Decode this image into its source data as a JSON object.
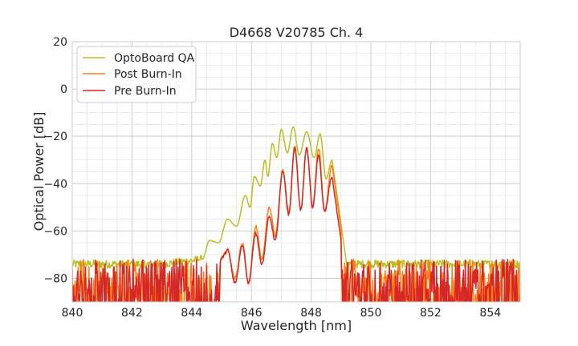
{
  "chart_data": {
    "type": "line",
    "title": "D4668 V20785 Ch. 4",
    "xlabel": "Wavelength [nm]",
    "ylabel": "Optical Power [dB]",
    "xlim": [
      840,
      855
    ],
    "ylim": [
      -90,
      20
    ],
    "xticks": [
      840,
      842,
      844,
      846,
      848,
      850,
      852,
      854
    ],
    "yticks": [
      20,
      0,
      -20,
      -40,
      -60,
      -80
    ],
    "xtick_labels": [
      "840",
      "842",
      "844",
      "846",
      "848",
      "850",
      "852",
      "854"
    ],
    "ytick_labels": [
      "20",
      "0",
      "−20",
      "−40",
      "−60",
      "−80"
    ],
    "grid": true,
    "legend_position": "top-left",
    "noise_floor": {
      "optoboard_qa": -74,
      "post_burn_in": -90,
      "pre_burn_in": -90
    },
    "series": [
      {
        "name": "OptoBoard QA",
        "color": "#bcbd22",
        "peaks": [
          {
            "x": 844.1,
            "y": -73
          },
          {
            "x": 844.6,
            "y": -64
          },
          {
            "x": 845.2,
            "y": -55
          },
          {
            "x": 845.8,
            "y": -45
          },
          {
            "x": 846.1,
            "y": -37
          },
          {
            "x": 846.45,
            "y": -30
          },
          {
            "x": 846.7,
            "y": -23
          },
          {
            "x": 847.0,
            "y": -17
          },
          {
            "x": 847.4,
            "y": -16
          },
          {
            "x": 847.85,
            "y": -18
          },
          {
            "x": 848.3,
            "y": -19
          },
          {
            "x": 848.7,
            "y": -30
          }
        ],
        "valleys": [
          {
            "x": 844.35,
            "y": -72
          },
          {
            "x": 844.9,
            "y": -65
          },
          {
            "x": 845.5,
            "y": -58
          },
          {
            "x": 845.95,
            "y": -50
          },
          {
            "x": 846.3,
            "y": -41
          },
          {
            "x": 846.55,
            "y": -37
          },
          {
            "x": 846.85,
            "y": -29
          },
          {
            "x": 847.2,
            "y": -27
          },
          {
            "x": 847.6,
            "y": -28
          },
          {
            "x": 848.1,
            "y": -29
          },
          {
            "x": 848.5,
            "y": -38
          }
        ]
      },
      {
        "name": "Post Burn-In",
        "color": "#ff7f0e",
        "peaks": [
          {
            "x": 845.2,
            "y": -68
          },
          {
            "x": 845.7,
            "y": -65
          },
          {
            "x": 846.15,
            "y": -58
          },
          {
            "x": 846.6,
            "y": -50
          },
          {
            "x": 847.05,
            "y": -34
          },
          {
            "x": 847.45,
            "y": -24
          },
          {
            "x": 847.85,
            "y": -25
          },
          {
            "x": 848.25,
            "y": -25
          },
          {
            "x": 848.7,
            "y": -32
          }
        ],
        "valleys": [
          {
            "x": 845.45,
            "y": -80
          },
          {
            "x": 845.9,
            "y": -82
          },
          {
            "x": 846.35,
            "y": -72
          },
          {
            "x": 846.8,
            "y": -62
          },
          {
            "x": 847.25,
            "y": -52
          },
          {
            "x": 847.65,
            "y": -51
          },
          {
            "x": 848.05,
            "y": -50
          },
          {
            "x": 848.45,
            "y": -52
          }
        ]
      },
      {
        "name": "Pre Burn-In",
        "color": "#d62728",
        "peaks": [
          {
            "x": 845.2,
            "y": -68
          },
          {
            "x": 845.7,
            "y": -66
          },
          {
            "x": 846.15,
            "y": -61
          },
          {
            "x": 846.6,
            "y": -54
          },
          {
            "x": 847.05,
            "y": -35
          },
          {
            "x": 847.45,
            "y": -25
          },
          {
            "x": 847.85,
            "y": -25
          },
          {
            "x": 848.25,
            "y": -28
          },
          {
            "x": 848.7,
            "y": -37
          }
        ],
        "valleys": [
          {
            "x": 845.45,
            "y": -82
          },
          {
            "x": 845.9,
            "y": -82
          },
          {
            "x": 846.35,
            "y": -74
          },
          {
            "x": 846.8,
            "y": -64
          },
          {
            "x": 847.25,
            "y": -53
          },
          {
            "x": 847.65,
            "y": -51
          },
          {
            "x": 848.05,
            "y": -50
          },
          {
            "x": 848.45,
            "y": -52
          }
        ]
      }
    ]
  }
}
